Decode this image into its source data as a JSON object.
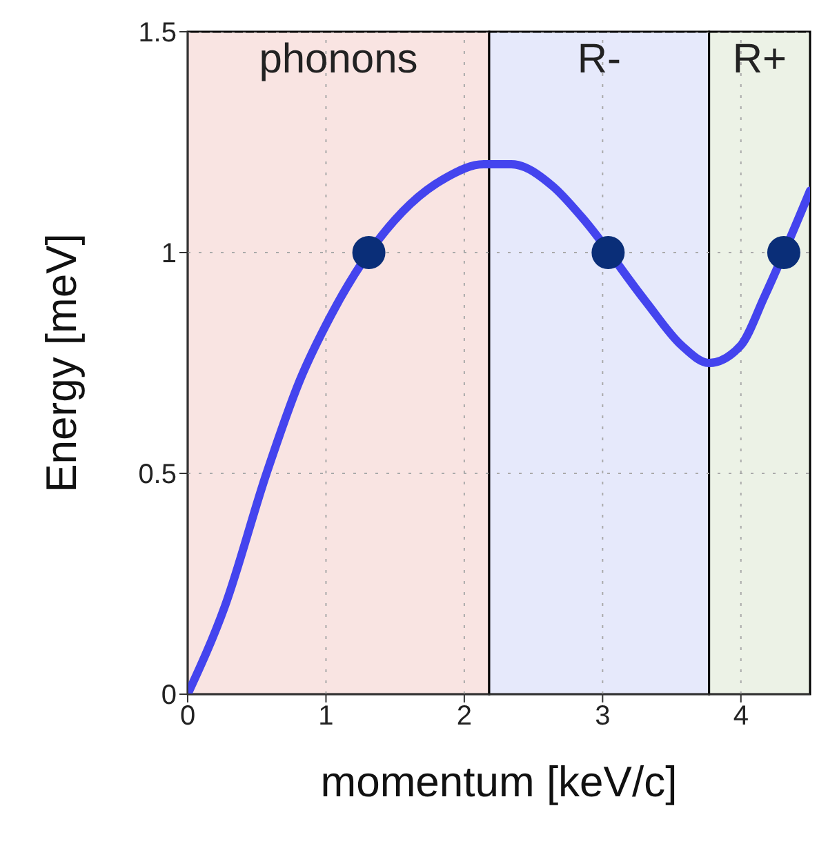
{
  "chart_data": {
    "type": "line",
    "xlabel": "momentum [keV/c]",
    "ylabel": "Energy [meV]",
    "xlim": [
      0,
      4.5
    ],
    "xticks": [
      0,
      1,
      2,
      3,
      4
    ],
    "ylim": [
      0,
      1.5
    ],
    "yticks": [
      0,
      0.5,
      1,
      1.5
    ],
    "grid": true,
    "series": [
      {
        "type": "line",
        "color": "#4444ee",
        "marker": "none",
        "x": [
          0,
          0.27,
          0.57,
          0.81,
          1.04,
          1.61,
          1.87,
          2.14,
          2.34,
          2.64,
          2.85,
          3.31,
          3.57,
          3.77,
          4.0,
          4.17,
          4.5
        ],
        "values": [
          0,
          0.2,
          0.5,
          0.71,
          0.86,
          1.11,
          1.17,
          1.2,
          1.2,
          1.15,
          1.08,
          0.89,
          0.79,
          0.75,
          0.79,
          0.9,
          1.14
        ]
      },
      {
        "type": "scatter",
        "color": "#0a2e78",
        "marker": "circle",
        "x": [
          1.31,
          3.04,
          4.31
        ],
        "values": [
          1,
          1,
          1
        ]
      }
    ],
    "bands": [
      {
        "axis": "x",
        "from": 0,
        "to": 2.18,
        "label": "phonons",
        "color": "#f9e4e2"
      },
      {
        "axis": "x",
        "from": 2.18,
        "to": 3.77,
        "label": "R-",
        "color": "#e6e9fb"
      },
      {
        "axis": "x",
        "from": 3.77,
        "to": 4.5,
        "label": "R+",
        "color": "#ecf2e6"
      }
    ]
  }
}
